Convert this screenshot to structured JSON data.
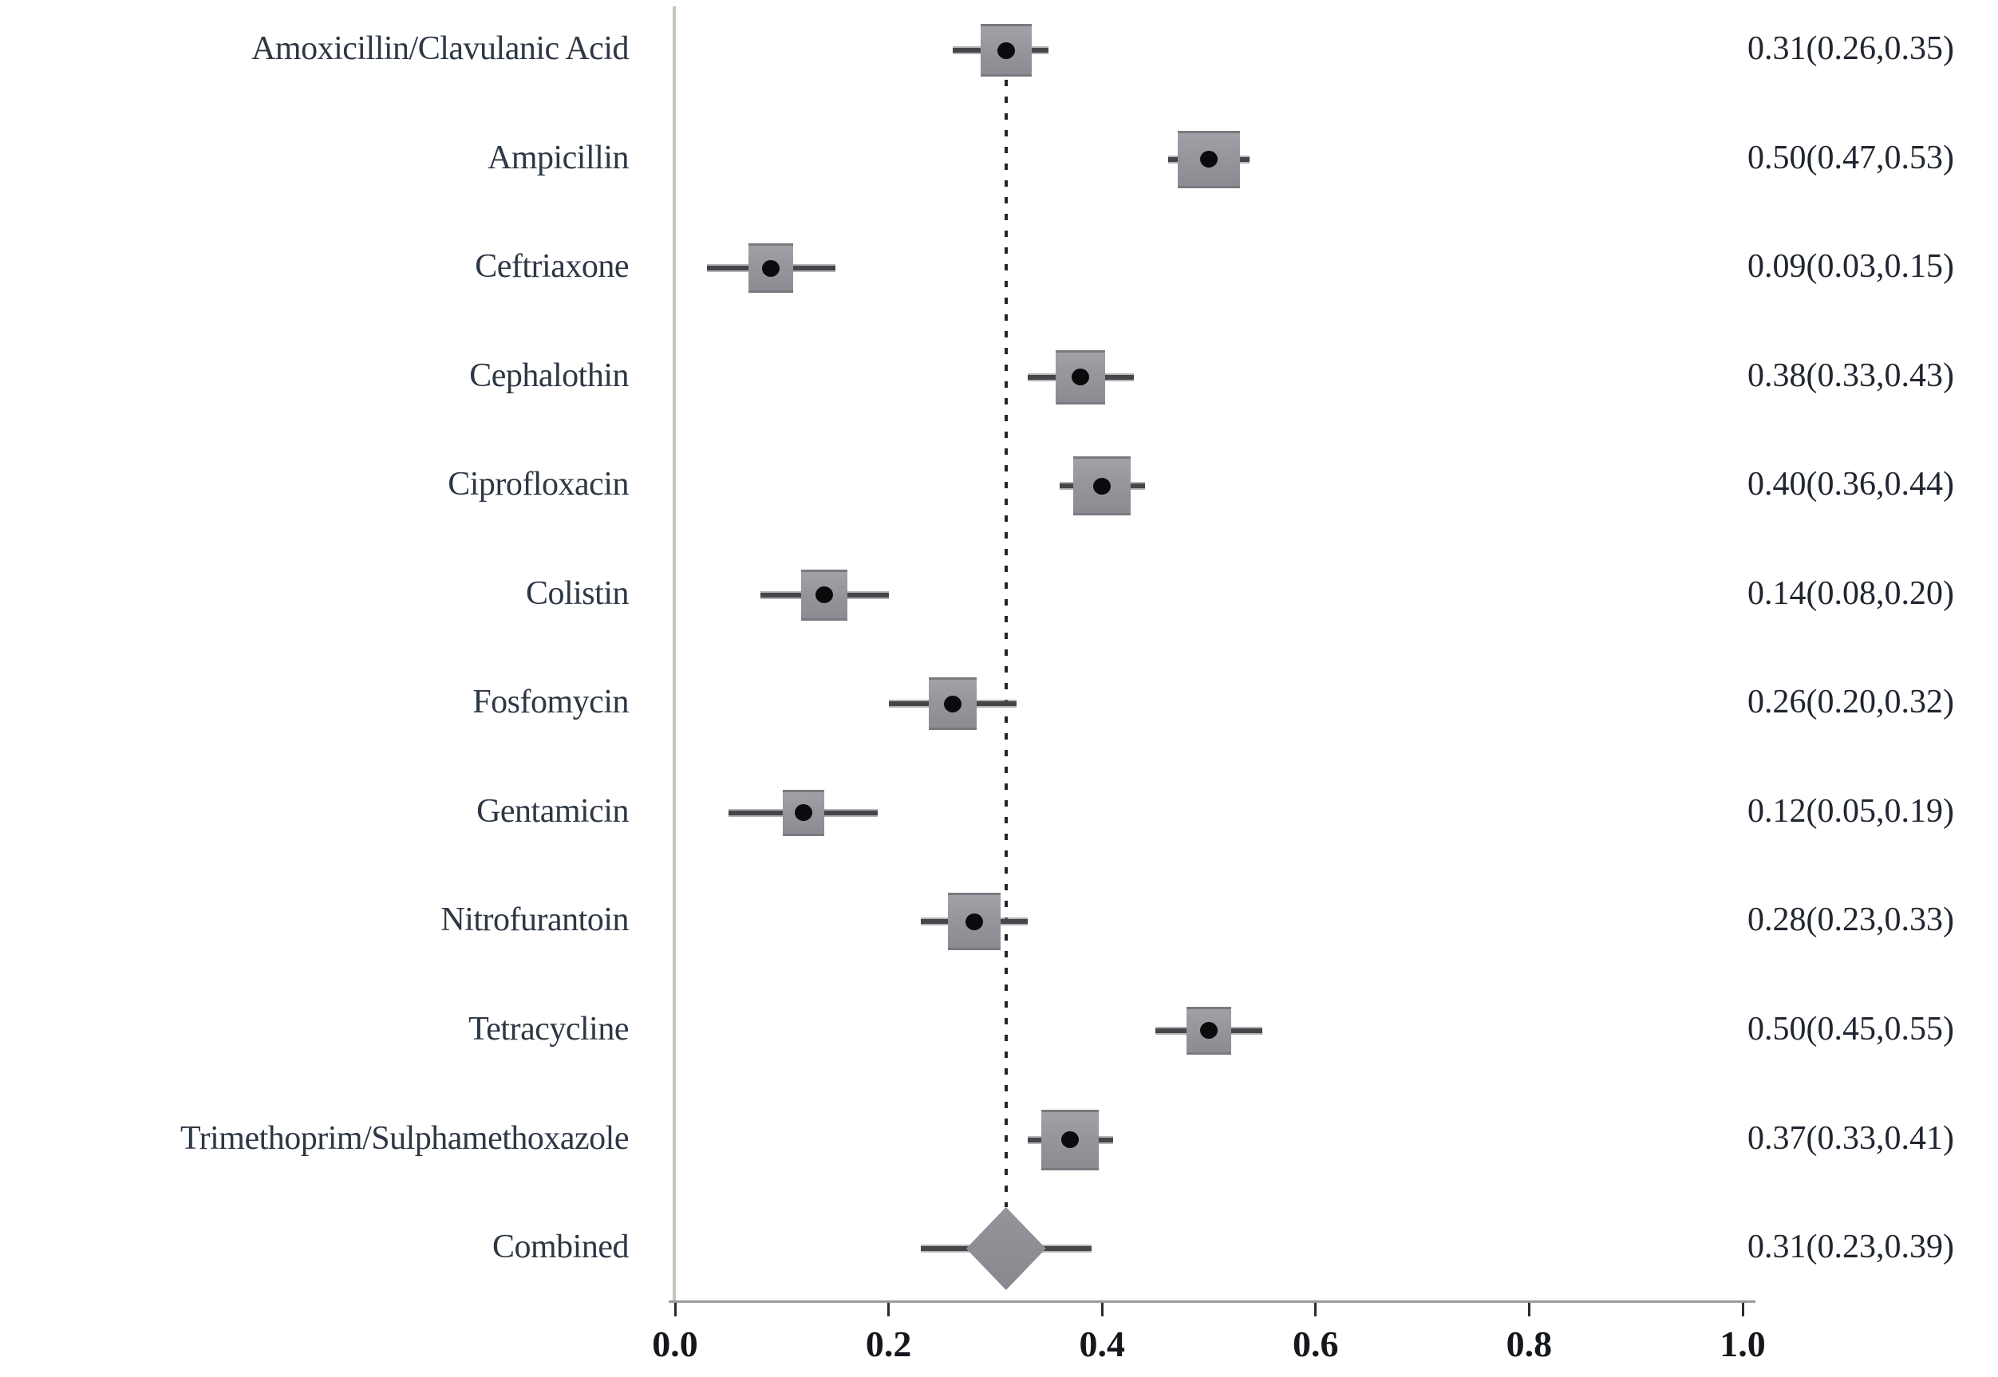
{
  "chart_data": {
    "type": "scatter",
    "subtype": "forest-plot",
    "title": "",
    "xlabel": "",
    "ylabel": "",
    "x_axis": {
      "min": 0.0,
      "max": 1.0,
      "ticks": [
        "0.0",
        "0.2",
        "0.4",
        "0.6",
        "0.8",
        "1.0"
      ],
      "grid": false
    },
    "reference_line": {
      "value": 0.31,
      "style": "dashed"
    },
    "legend": null,
    "rows": [
      {
        "label": "Amoxicillin/Clavulanic Acid",
        "estimate": 0.31,
        "ci_low": 0.26,
        "ci_high": 0.35,
        "display": "0.31(0.26,0.35)",
        "marker": "square",
        "size": [
          64,
          66
        ]
      },
      {
        "label": "Ampicillin",
        "estimate": 0.5,
        "ci_low": 0.47,
        "ci_high": 0.53,
        "display": "0.50(0.47,0.53)",
        "marker": "square",
        "size": [
          78,
          72
        ]
      },
      {
        "label": "Ceftriaxone",
        "estimate": 0.09,
        "ci_low": 0.03,
        "ci_high": 0.15,
        "display": "0.09(0.03,0.15)",
        "marker": "square",
        "size": [
          56,
          62
        ]
      },
      {
        "label": "Cephalothin",
        "estimate": 0.38,
        "ci_low": 0.33,
        "ci_high": 0.43,
        "display": "0.38(0.33,0.43)",
        "marker": "square",
        "size": [
          62,
          68
        ]
      },
      {
        "label": "Ciprofloxacin",
        "estimate": 0.4,
        "ci_low": 0.36,
        "ci_high": 0.44,
        "display": "0.40(0.36,0.44)",
        "marker": "square",
        "size": [
          72,
          74
        ]
      },
      {
        "label": "Colistin",
        "estimate": 0.14,
        "ci_low": 0.08,
        "ci_high": 0.2,
        "display": "0.14(0.08,0.20)",
        "marker": "square",
        "size": [
          58,
          64
        ]
      },
      {
        "label": "Fosfomycin",
        "estimate": 0.26,
        "ci_low": 0.2,
        "ci_high": 0.32,
        "display": "0.26(0.20,0.32)",
        "marker": "square",
        "size": [
          60,
          66
        ]
      },
      {
        "label": "Gentamicin",
        "estimate": 0.12,
        "ci_low": 0.05,
        "ci_high": 0.19,
        "display": "0.12(0.05,0.19)",
        "marker": "square",
        "size": [
          52,
          58
        ]
      },
      {
        "label": "Nitrofurantoin",
        "estimate": 0.28,
        "ci_low": 0.23,
        "ci_high": 0.33,
        "display": "0.28(0.23,0.33)",
        "marker": "square",
        "size": [
          66,
          72
        ]
      },
      {
        "label": "Tetracycline",
        "estimate": 0.5,
        "ci_low": 0.45,
        "ci_high": 0.55,
        "display": "0.50(0.45,0.55)",
        "marker": "square",
        "size": [
          56,
          60
        ]
      },
      {
        "label": "Trimethoprim/Sulphamethoxazole",
        "estimate": 0.37,
        "ci_low": 0.33,
        "ci_high": 0.41,
        "display": "0.37(0.33,0.41)",
        "marker": "square",
        "size": [
          72,
          76
        ]
      },
      {
        "label": "Combined",
        "estimate": 0.31,
        "ci_low": 0.23,
        "ci_high": 0.39,
        "display": "0.31(0.23,0.39)",
        "marker": "diamond",
        "size": [
          100,
          104
        ]
      }
    ]
  },
  "colors": {
    "background": "#ffffff",
    "label_text": "#2e3744",
    "value_text": "#20262f",
    "tick_text": "#14171c",
    "square_fill": "#96969c",
    "diamond_fill": "#8c8c93",
    "whisker": "#46464a",
    "point_dot": "#0b0b0d",
    "reference_line": "#26262a",
    "x_axis_line": "#9b9b9b",
    "y_axis_line": "#c9c2bb"
  }
}
